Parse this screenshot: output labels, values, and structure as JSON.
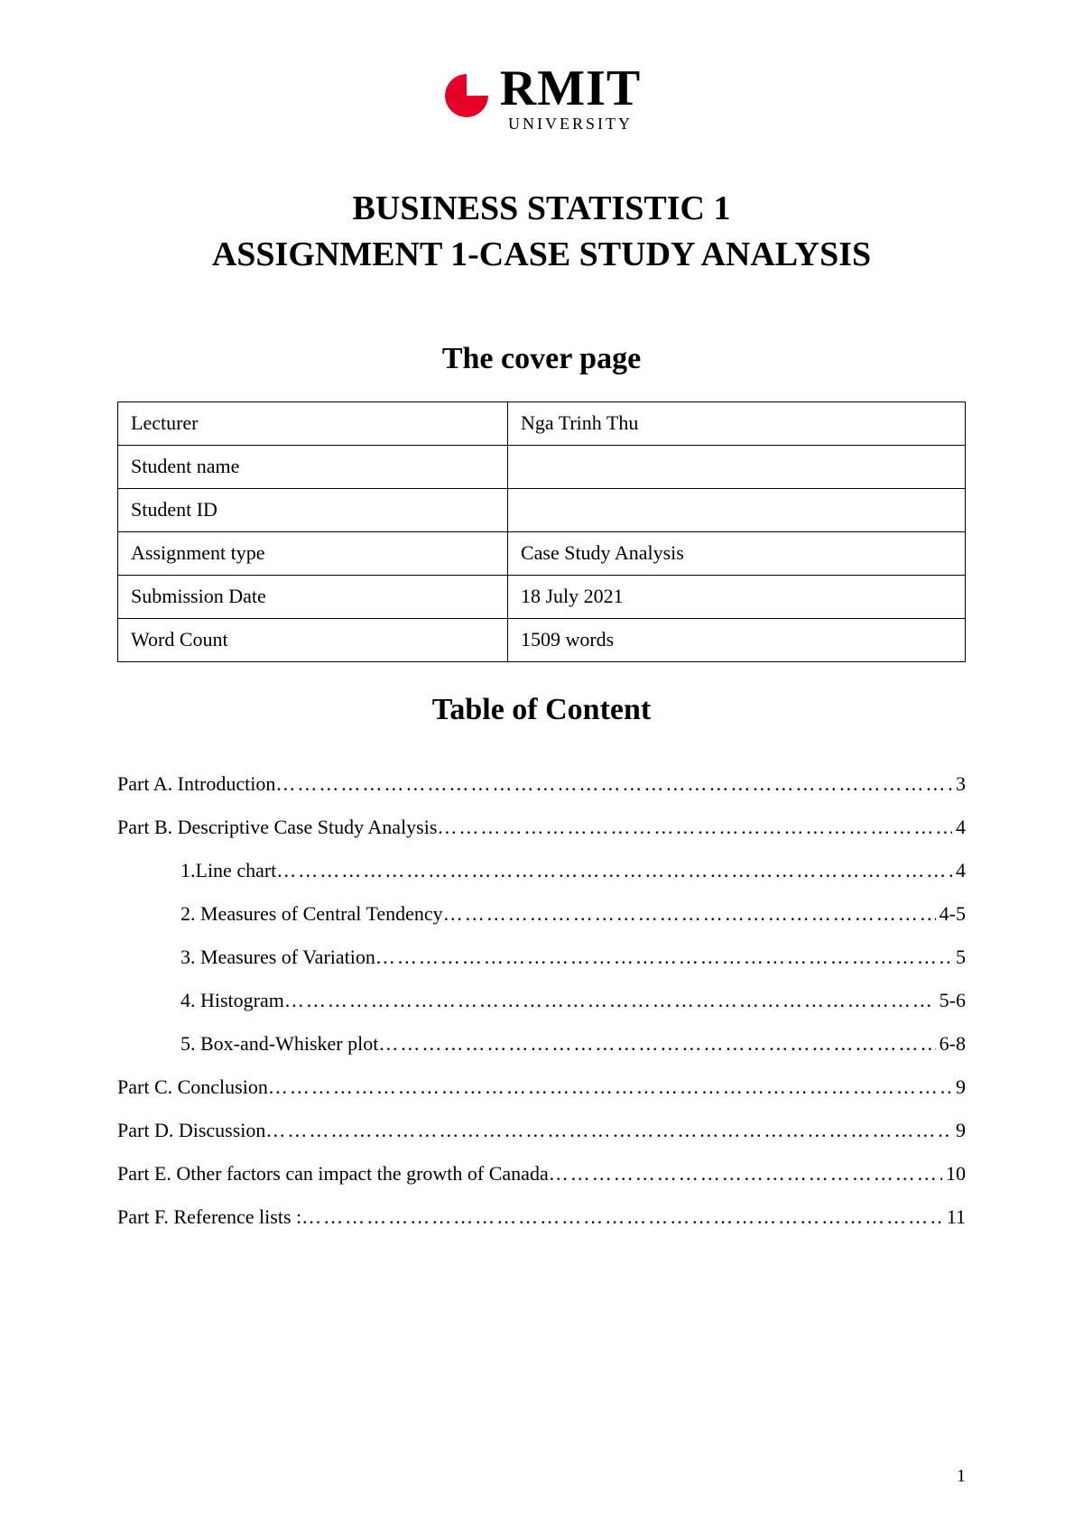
{
  "logo": {
    "icon_color": "#e60028",
    "rmit": "RMIT",
    "university": "UNIVERSITY"
  },
  "title": {
    "line1": "BUSINESS STATISTIC 1",
    "line2": "ASSIGNMENT 1-CASE STUDY ANALYSIS"
  },
  "cover_subtitle": "The cover page",
  "info_table": {
    "rows": [
      {
        "label": "Lecturer",
        "value": "Nga Trinh Thu"
      },
      {
        "label": "Student name",
        "value": ""
      },
      {
        "label": "Student ID",
        "value": ""
      },
      {
        "label": "Assignment type",
        "value": "Case Study Analysis"
      },
      {
        "label": "Submission Date",
        "value": "18 July 2021"
      },
      {
        "label": "Word Count",
        "value": "1509 words"
      }
    ]
  },
  "toc_title": "Table of Content",
  "toc": [
    {
      "label": "Part A. Introduction",
      "page": "3",
      "indent": false
    },
    {
      "label": "Part B. Descriptive Case Study Analysis",
      "page": "4",
      "indent": false
    },
    {
      "label": "1.Line chart",
      "page": "4",
      "indent": true
    },
    {
      "label": "2. Measures of Central Tendency",
      "page": "4-5",
      "indent": true
    },
    {
      "label": "3. Measures of Variation",
      "page": "5",
      "indent": true
    },
    {
      "label": "4. Histogram",
      "page": "5-6",
      "indent": true
    },
    {
      "label": "5. Box-and-Whisker plot",
      "page": "6-8",
      "indent": true
    },
    {
      "label": "Part C. Conclusion",
      "page": "9",
      "indent": false
    },
    {
      "label": "Part D. Discussion",
      "page": "9",
      "indent": false
    },
    {
      "label": "Part E. Other factors can impact the growth of Canada",
      "page": "10",
      "indent": false
    },
    {
      "label": "Part F. Reference lists : ",
      "page": "11",
      "indent": false
    }
  ],
  "page_number": "1"
}
